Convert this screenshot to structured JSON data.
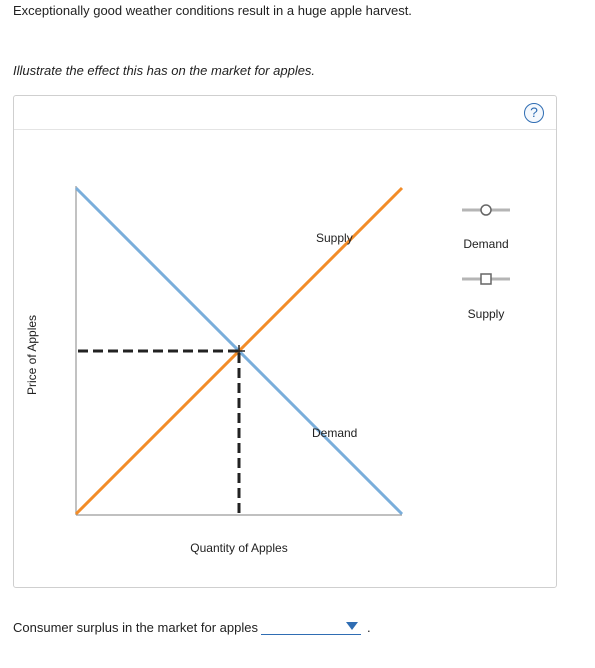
{
  "question": {
    "text": "Exceptionally good weather conditions result in a huge apple harvest."
  },
  "instruction": {
    "text": "Illustrate the effect this has on the market for apples."
  },
  "help": {
    "icon": "question-mark-icon",
    "label": "?"
  },
  "graph": {
    "curves": {
      "supply_label": "Supply",
      "demand_label": "Demand"
    },
    "axes": {
      "xlabel": "Quantity of Apples",
      "ylabel": "Price of Apples"
    },
    "colors": {
      "supply": "#f28c28",
      "demand": "#7aaedb",
      "equilibrium_lines": "#222222"
    }
  },
  "legend": {
    "demand_label": "Demand",
    "supply_label": "Supply",
    "demand_tool_icon": "circle-point-tool-icon",
    "supply_tool_icon": "square-point-tool-icon"
  },
  "surplus": {
    "prompt": "Consumer surplus in the market for apples",
    "selected_value": "",
    "period": "."
  }
}
